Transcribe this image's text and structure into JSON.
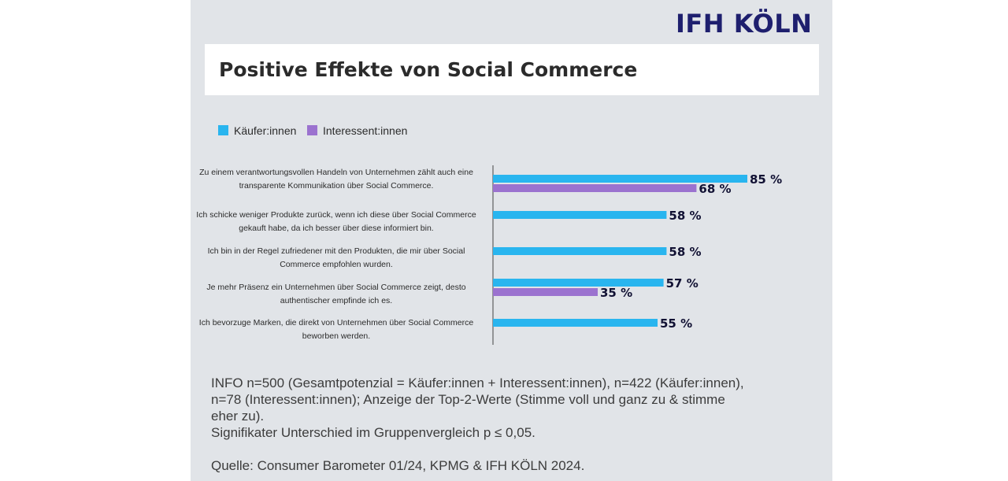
{
  "logo": "IFH KÖLN",
  "colors": {
    "buyers": "#29b5ef",
    "interested": "#9b72cf",
    "value_text": "#111133"
  },
  "chart_data": {
    "type": "bar",
    "orientation": "horizontal",
    "title": "Positive Effekte von Social Commerce",
    "legend_position": "top-left",
    "xlim": [
      0,
      100
    ],
    "value_suffix": " %",
    "categories": [
      "Zu einem verantwortungsvollen Handeln von Unternehmen zählt auch eine transparente Kommunikation über Social Commerce.",
      "Ich schicke weniger Produkte zurück, wenn ich diese über Social Commerce gekauft habe, da ich besser über diese informiert bin.",
      "Ich bin in der Regel zufriedener mit den Produkten, die mir über Social Commerce empfohlen wurden.",
      "Je mehr Präsenz ein Unternehmen über Social Commerce zeigt, desto authentischer empfinde ich es.",
      "Ich bevorzuge Marken, die direkt von Unternehmen über Social Commerce beworben werden."
    ],
    "series": [
      {
        "name": "Käufer:innen",
        "values": [
          85,
          58,
          58,
          57,
          55
        ]
      },
      {
        "name": "Interessent:innen",
        "values": [
          68,
          null,
          null,
          35,
          null
        ]
      }
    ]
  },
  "footer": {
    "info_lines": [
      "INFO n=500 (Gesamtpotenzial = Käufer:innen + Interessent:innen), n=422 (Käufer:innen),",
      "n=78 (Interessent:innen); Anzeige der Top-2-Werte (Stimme voll und ganz zu & stimme",
      "eher zu).",
      "Signifikater Unterschied im Gruppenvergleich p ≤ 0,05."
    ],
    "source": "Quelle: Consumer Barometer 01/24, KPMG & IFH KÖLN 2024."
  }
}
